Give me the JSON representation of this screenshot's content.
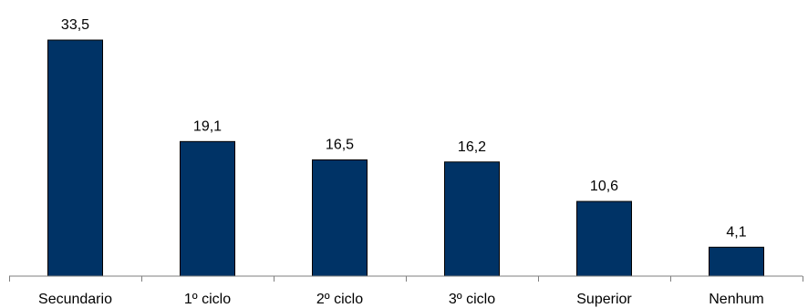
{
  "chart_data": {
    "type": "bar",
    "categories": [
      "Secundario",
      "1º ciclo",
      "2º ciclo",
      "3º ciclo",
      "Superior",
      "Nenhum"
    ],
    "values": [
      33.5,
      19.1,
      16.5,
      16.2,
      10.6,
      4.1
    ],
    "value_labels": [
      "33,5",
      "19,1",
      "16,5",
      "16,2",
      "10,6",
      "4,1"
    ],
    "title": "",
    "xlabel": "",
    "ylabel": "",
    "ylim": [
      0,
      33.5
    ],
    "grid": false,
    "legend": "none",
    "bar_color": "#003366"
  }
}
